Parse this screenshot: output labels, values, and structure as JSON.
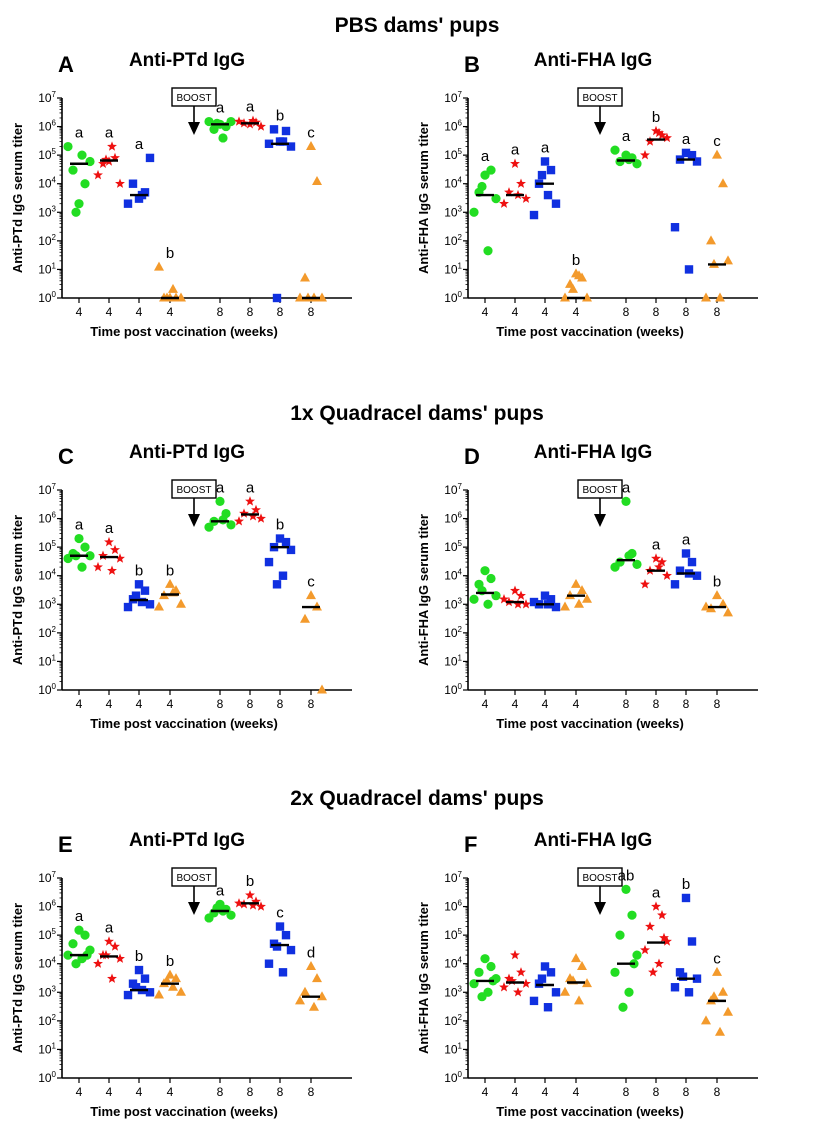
{
  "row_titles": [
    "PBS dams' pups",
    "1x Quadracel dams' pups",
    "2x Quadracel dams' pups"
  ],
  "boost_label": "BOOST",
  "group_colors": [
    "#22dd22",
    "#ee1111",
    "#1030e0",
    "#f39a2c"
  ],
  "group_markers": [
    "circle",
    "star",
    "square",
    "triangle"
  ],
  "chart_data": [
    {
      "type": "scatter",
      "panel": "A",
      "title": "Anti-PTd IgG",
      "xlabel": "Time post vaccination (weeks)",
      "ylabel": "Anti-PTd IgG serum titer",
      "yscale": "log",
      "ylim": [
        1,
        10000000
      ],
      "ytick_base": "10",
      "ytick_exponents": [
        "0",
        "1",
        "2",
        "3",
        "4",
        "5",
        "6",
        "7"
      ],
      "x_ticks": [
        "4",
        "4",
        "4",
        "4",
        "8",
        "8",
        "8",
        "8"
      ],
      "groups": [
        {
          "values": [
            2000,
            10000,
            30000,
            60000,
            200000,
            100000,
            1000
          ],
          "median": 50000,
          "letter": "a"
        },
        {
          "values": [
            60000,
            80000,
            50000,
            10000,
            20000,
            200000,
            70000
          ],
          "median": 65000,
          "letter": "a"
        },
        {
          "values": [
            3000,
            5000,
            10000,
            80000,
            2000,
            4000
          ],
          "median": 4000,
          "letter": "a"
        },
        {
          "values": [
            1,
            1,
            1,
            1,
            12,
            2,
            1
          ],
          "median": 1,
          "letter": "b"
        },
        {
          "values": [
            1200000,
            1000000,
            800000,
            1500000,
            1500000,
            400000,
            1300000
          ],
          "median": 1200000,
          "letter": "a"
        },
        {
          "values": [
            1200000,
            1400000,
            1300000,
            1000000,
            1500000,
            1600000
          ],
          "median": 1300000,
          "letter": "a"
        },
        {
          "values": [
            300000,
            700000,
            800000,
            200000,
            250000,
            300000,
            1
          ],
          "median": 250000,
          "letter": "b"
        },
        {
          "values": [
            200000,
            12000,
            5,
            1,
            1,
            1,
            1
          ],
          "median": 1,
          "letter": "c"
        }
      ]
    },
    {
      "type": "scatter",
      "panel": "B",
      "title": "Anti-FHA IgG",
      "xlabel": "Time post vaccination (weeks)",
      "ylabel": "Anti-FHA IgG serum titer",
      "yscale": "log",
      "ylim": [
        1,
        10000000
      ],
      "ytick_base": "10",
      "ytick_exponents": [
        "0",
        "1",
        "2",
        "3",
        "4",
        "5",
        "6",
        "7"
      ],
      "x_ticks": [
        "4",
        "4",
        "4",
        "4",
        "8",
        "8",
        "8",
        "8"
      ],
      "groups": [
        {
          "values": [
            20000,
            30000,
            5000,
            3000,
            1000,
            45,
            8000
          ],
          "median": 4000,
          "letter": "a"
        },
        {
          "values": [
            50000,
            10000,
            5000,
            3000,
            2000,
            4000
          ],
          "median": 4000,
          "letter": "a"
        },
        {
          "values": [
            60000,
            30000,
            10000,
            2000,
            800,
            4000,
            20000
          ],
          "median": 10000,
          "letter": "a"
        },
        {
          "values": [
            7,
            5,
            3,
            1,
            1,
            6,
            2
          ],
          "median": 1,
          "letter": "b"
        },
        {
          "values": [
            100000,
            80000,
            60000,
            50000,
            150000,
            70000
          ],
          "median": 65000,
          "letter": "a"
        },
        {
          "values": [
            700000,
            500000,
            300000,
            400000,
            100000,
            600000
          ],
          "median": 350000,
          "letter": "b"
        },
        {
          "values": [
            120000,
            100000,
            70000,
            60000,
            300,
            10
          ],
          "median": 70000,
          "letter": "a"
        },
        {
          "values": [
            100000,
            10000,
            100,
            20,
            1,
            1,
            15
          ],
          "median": 15,
          "letter": "c"
        }
      ]
    },
    {
      "type": "scatter",
      "panel": "C",
      "title": "Anti-PTd IgG",
      "xlabel": "Time post vaccination (weeks)",
      "ylabel": "Anti-PTd IgG serum titer",
      "yscale": "log",
      "ylim": [
        1,
        10000000
      ],
      "ytick_base": "10",
      "ytick_exponents": [
        "0",
        "1",
        "2",
        "3",
        "4",
        "5",
        "6",
        "7"
      ],
      "x_ticks": [
        "4",
        "4",
        "4",
        "4",
        "8",
        "8",
        "8",
        "8"
      ],
      "groups": [
        {
          "values": [
            200000,
            100000,
            60000,
            50000,
            40000,
            20000,
            50000
          ],
          "median": 50000,
          "letter": "a"
        },
        {
          "values": [
            150000,
            80000,
            50000,
            40000,
            20000,
            15000
          ],
          "median": 45000,
          "letter": "a"
        },
        {
          "values": [
            5000,
            3000,
            1500,
            1000,
            800,
            1200,
            2000
          ],
          "median": 1400,
          "letter": "b"
        },
        {
          "values": [
            5000,
            3000,
            2000,
            1000,
            800,
            2500
          ],
          "median": 2200,
          "letter": "b"
        },
        {
          "values": [
            4000000,
            1500000,
            800000,
            600000,
            500000,
            900000
          ],
          "median": 800000,
          "letter": "a"
        },
        {
          "values": [
            4000000,
            2000000,
            1500000,
            1000000,
            800000,
            1200000
          ],
          "median": 1400000,
          "letter": "a"
        },
        {
          "values": [
            200000,
            150000,
            100000,
            80000,
            30000,
            10000,
            5000
          ],
          "median": 100000,
          "letter": "b"
        },
        {
          "values": [
            2000,
            800,
            300,
            1
          ],
          "median": 800,
          "letter": "c"
        }
      ]
    },
    {
      "type": "scatter",
      "panel": "D",
      "title": "Anti-FHA IgG",
      "xlabel": "Time post vaccination (weeks)",
      "ylabel": "Anti-FHA IgG serum titer",
      "yscale": "log",
      "ylim": [
        1,
        10000000
      ],
      "ytick_base": "10",
      "ytick_exponents": [
        "0",
        "1",
        "2",
        "3",
        "4",
        "5",
        "6",
        "7"
      ],
      "x_ticks": [
        "4",
        "4",
        "4",
        "4",
        "8",
        "8",
        "8",
        "8"
      ],
      "groups": [
        {
          "values": [
            15000,
            8000,
            5000,
            2000,
            1500,
            1000,
            3000
          ],
          "median": 2500,
          "letter": ""
        },
        {
          "values": [
            3000,
            2000,
            1200,
            1000,
            1500,
            1000
          ],
          "median": 1200,
          "letter": ""
        },
        {
          "values": [
            2000,
            1500,
            1000,
            800,
            1200,
            1000
          ],
          "median": 1000,
          "letter": ""
        },
        {
          "values": [
            5000,
            3000,
            2000,
            1500,
            800,
            1000
          ],
          "median": 2000,
          "letter": ""
        },
        {
          "values": [
            4000000,
            60000,
            30000,
            25000,
            20000,
            50000
          ],
          "median": 35000,
          "letter": "a"
        },
        {
          "values": [
            40000,
            30000,
            15000,
            10000,
            5000,
            20000
          ],
          "median": 15000,
          "letter": "a"
        },
        {
          "values": [
            60000,
            30000,
            15000,
            10000,
            5000,
            12000
          ],
          "median": 12000,
          "letter": "a"
        },
        {
          "values": [
            2000,
            1000,
            700,
            500,
            800
          ],
          "median": 800,
          "letter": "b"
        }
      ]
    },
    {
      "type": "scatter",
      "panel": "E",
      "title": "Anti-PTd IgG",
      "xlabel": "Time post vaccination (weeks)",
      "ylabel": "Anti-PTd IgG serum titer",
      "yscale": "log",
      "ylim": [
        1,
        10000000
      ],
      "ytick_base": "10",
      "ytick_exponents": [
        "0",
        "1",
        "2",
        "3",
        "4",
        "5",
        "6",
        "7"
      ],
      "x_ticks": [
        "4",
        "4",
        "4",
        "4",
        "8",
        "8",
        "8",
        "8"
      ],
      "groups": [
        {
          "values": [
            150000,
            100000,
            50000,
            30000,
            20000,
            15000,
            10000,
            20000
          ],
          "median": 20000,
          "letter": "a"
        },
        {
          "values": [
            60000,
            40000,
            20000,
            15000,
            10000,
            3000,
            20000
          ],
          "median": 18000,
          "letter": "a"
        },
        {
          "values": [
            6000,
            3000,
            2000,
            1000,
            800,
            1200,
            1500
          ],
          "median": 1200,
          "letter": "b"
        },
        {
          "values": [
            4000,
            3000,
            2000,
            1000,
            800,
            1500,
            2500
          ],
          "median": 2000,
          "letter": "b"
        },
        {
          "values": [
            1200000,
            800000,
            600000,
            500000,
            400000,
            700000,
            900000
          ],
          "median": 700000,
          "letter": "a"
        },
        {
          "values": [
            2500000,
            1500000,
            1200000,
            1000000,
            1300000,
            1100000
          ],
          "median": 1300000,
          "letter": "b"
        },
        {
          "values": [
            200000,
            100000,
            50000,
            30000,
            10000,
            5000,
            40000
          ],
          "median": 45000,
          "letter": "c"
        },
        {
          "values": [
            8000,
            3000,
            1000,
            700,
            500,
            300
          ],
          "median": 700,
          "letter": "d"
        }
      ]
    },
    {
      "type": "scatter",
      "panel": "F",
      "title": "Anti-FHA IgG",
      "xlabel": "Time post vaccination (weeks)",
      "ylabel": "Anti-FHA IgG serum titer",
      "yscale": "log",
      "ylim": [
        1,
        10000000
      ],
      "ytick_base": "10",
      "ytick_exponents": [
        "0",
        "1",
        "2",
        "3",
        "4",
        "5",
        "6",
        "7"
      ],
      "x_ticks": [
        "4",
        "4",
        "4",
        "4",
        "8",
        "8",
        "8",
        "8"
      ],
      "groups": [
        {
          "values": [
            15000,
            8000,
            5000,
            3000,
            2000,
            1000,
            700,
            2500
          ],
          "median": 2500,
          "letter": ""
        },
        {
          "values": [
            20000,
            5000,
            3000,
            2000,
            1500,
            1000,
            2500
          ],
          "median": 2200,
          "letter": ""
        },
        {
          "values": [
            8000,
            5000,
            2000,
            1000,
            500,
            300,
            3000
          ],
          "median": 1800,
          "letter": ""
        },
        {
          "values": [
            15000,
            8000,
            3000,
            2000,
            1000,
            500,
            2500
          ],
          "median": 2200,
          "letter": ""
        },
        {
          "values": [
            4000000,
            500000,
            100000,
            20000,
            5000,
            1000,
            300,
            10000
          ],
          "median": 10000,
          "letter": "ab"
        },
        {
          "values": [
            1000000,
            500000,
            200000,
            60000,
            30000,
            10000,
            5000,
            80000
          ],
          "median": 55000,
          "letter": "a"
        },
        {
          "values": [
            2000000,
            60000,
            5000,
            3000,
            1500,
            1000,
            3500
          ],
          "median": 3000,
          "letter": "b"
        },
        {
          "values": [
            5000,
            1000,
            500,
            200,
            100,
            40,
            700
          ],
          "median": 500,
          "letter": "c"
        }
      ]
    }
  ]
}
